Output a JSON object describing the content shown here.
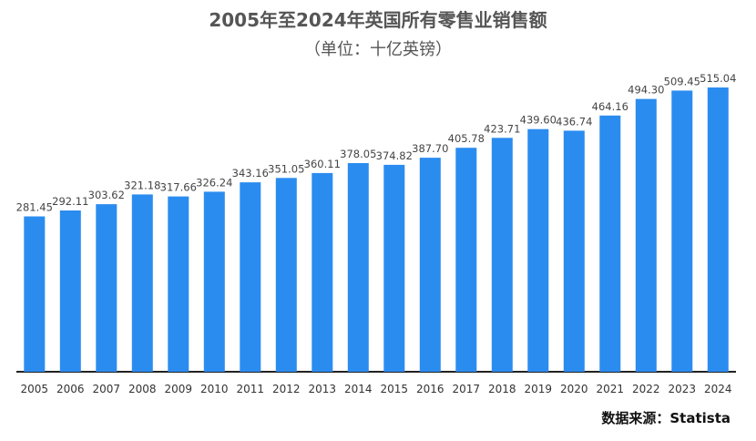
{
  "chart_data": {
    "type": "bar",
    "title": "2005年至2024年英国所有零售业销售额",
    "subtitle": "（单位：十亿英镑）",
    "categories": [
      "2005",
      "2006",
      "2007",
      "2008",
      "2009",
      "2010",
      "2011",
      "2012",
      "2013",
      "2014",
      "2015",
      "2016",
      "2017",
      "2018",
      "2019",
      "2020",
      "2021",
      "2022",
      "2023",
      "2024"
    ],
    "values": [
      281.45,
      292.11,
      303.62,
      321.18,
      317.66,
      326.24,
      343.16,
      351.05,
      360.11,
      378.05,
      374.82,
      387.7,
      405.78,
      423.71,
      439.6,
      436.74,
      464.16,
      494.3,
      509.45,
      515.04
    ],
    "value_labels": [
      "281.45",
      "292.11",
      "303.62",
      "321.18",
      "317.66",
      "326.24",
      "343.16",
      "351.05",
      "360.11",
      "378.05",
      "374.82",
      "387.70",
      "405.78",
      "423.71",
      "439.60",
      "436.74",
      "464.16",
      "494.30",
      "509.45",
      "515.04"
    ],
    "ylim": [
      0,
      610
    ],
    "bar_color": "#2b8cf0",
    "grid": false,
    "legend": "none"
  },
  "source": "数据来源：Statista"
}
